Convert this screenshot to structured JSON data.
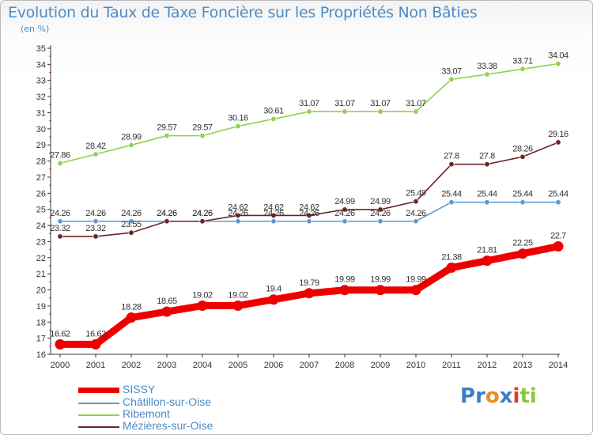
{
  "title": "Evolution du Taux de Taxe Foncière sur les Propriétés Non Bâties",
  "unit_label": "(en %)",
  "brand": {
    "letters": [
      "P",
      "r",
      "o",
      "x",
      "i",
      "t",
      "i"
    ],
    "colors": [
      "#3a7fc4",
      "#3a7fc4",
      "#f08a1c",
      "#3a7fc4",
      "#e23a2a",
      "#8cc63e",
      "#8cc63e"
    ]
  },
  "chart_data": {
    "type": "line",
    "title": "Evolution du Taux de Taxe Foncière sur les Propriétés Non Bâties",
    "ylabel": "(en %)",
    "xlabel": "",
    "x": [
      "2000",
      "2001",
      "2002",
      "2003",
      "2004",
      "2005",
      "2006",
      "2007",
      "2008",
      "2009",
      "2010",
      "2011",
      "2012",
      "2013",
      "2014"
    ],
    "ylim": [
      16,
      35
    ],
    "yticks": [
      "16",
      "17",
      "18",
      "19",
      "20",
      "21",
      "22",
      "23",
      "24",
      "25",
      "26",
      "27",
      "28",
      "29",
      "30",
      "31",
      "32",
      "33",
      "34",
      "35"
    ],
    "grid": false,
    "legend_position": "bottom-left",
    "series": [
      {
        "name": "SISSY",
        "color": "#ee0000",
        "highlight": true,
        "values": [
          16.62,
          16.62,
          18.28,
          18.65,
          19.02,
          19.02,
          19.4,
          19.79,
          19.99,
          19.99,
          19.99,
          21.38,
          21.81,
          22.25,
          22.7
        ],
        "labels": [
          "16.62",
          "16.62",
          "18.28",
          "18.65",
          "19.02",
          "19.02",
          "19.4",
          "19.79",
          "19.99",
          "19.99",
          "19.99",
          "21.38",
          "21.81",
          "22.25",
          "22.7"
        ]
      },
      {
        "name": "Châtillon-sur-Oise",
        "color": "#5f98cf",
        "highlight": false,
        "values": [
          24.26,
          24.26,
          24.26,
          24.26,
          24.26,
          24.26,
          24.26,
          24.26,
          24.26,
          24.26,
          24.26,
          25.44,
          25.44,
          25.44,
          25.44
        ],
        "labels": [
          "24.26",
          "24.26",
          "24.26",
          "24.26",
          "24.26",
          "24.26",
          "24.26",
          "24.26",
          "24.26",
          "24.26",
          "24.26",
          "25.44",
          "25.44",
          "25.44",
          "25.44"
        ]
      },
      {
        "name": "Ribemont",
        "color": "#92d050",
        "highlight": false,
        "values": [
          27.86,
          28.42,
          28.99,
          29.57,
          29.57,
          30.16,
          30.61,
          31.07,
          31.07,
          31.07,
          31.07,
          33.07,
          33.38,
          33.71,
          34.04
        ],
        "labels": [
          "27.86",
          "28.42",
          "28.99",
          "29.57",
          "29.57",
          "30.16",
          "30.61",
          "31.07",
          "31.07",
          "31.07",
          "31.07",
          "33.07",
          "33.38",
          "33.71",
          "34.04"
        ]
      },
      {
        "name": "Mézières-sur-Oise",
        "color": "#6b2424",
        "highlight": false,
        "values": [
          23.32,
          23.32,
          23.55,
          24.26,
          24.26,
          24.62,
          24.62,
          24.62,
          24.99,
          24.99,
          25.49,
          27.8,
          27.8,
          28.26,
          29.16
        ],
        "labels": [
          "23.32",
          "23.32",
          "23.55",
          "24.26",
          "24.26",
          "24.62",
          "24.62",
          "24.62",
          "24.99",
          "24.99",
          "25.49",
          "27.8",
          "27.8",
          "28.26",
          "29.16"
        ]
      }
    ]
  }
}
